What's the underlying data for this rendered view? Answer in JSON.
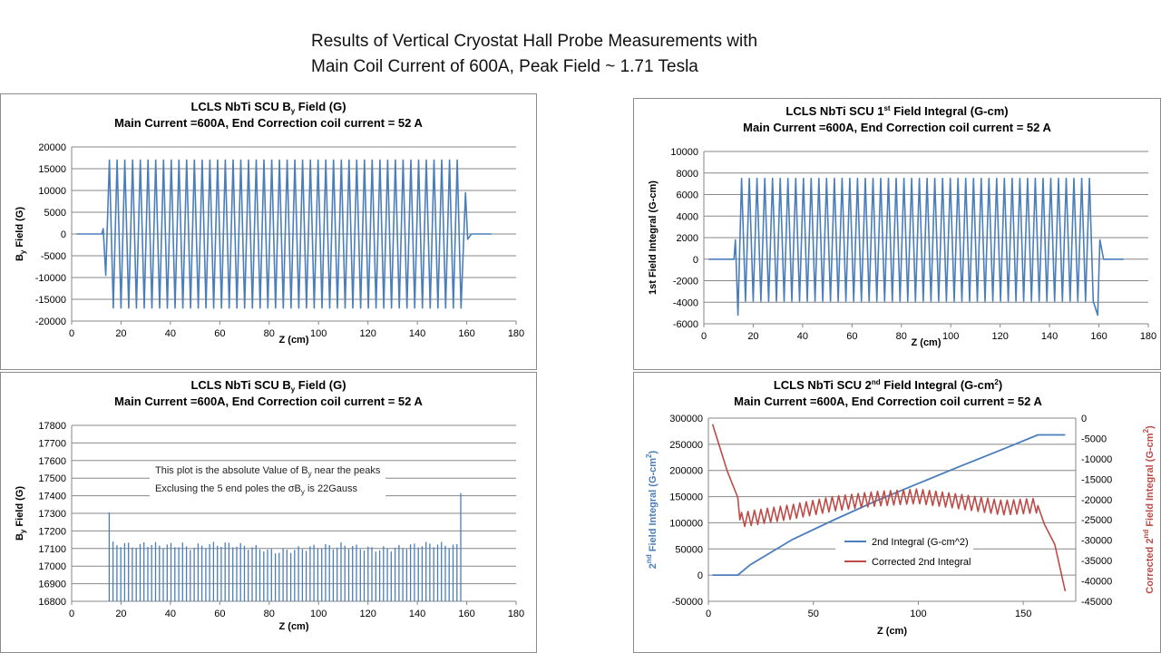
{
  "slide": {
    "title_line1": "Results of Vertical Cryostat Hall Probe Measurements with",
    "title_line2": "Main Coil Current of 600A, Peak Field ~ 1.71 Tesla"
  },
  "colors": {
    "blue": "#4a7ebb",
    "red": "#be4b48",
    "grid": "#878787",
    "text": "#000000"
  },
  "chart_data": [
    {
      "id": "by_field",
      "type": "line",
      "title": [
        "LCLS NbTi SCU B",
        "y",
        " Field (G)"
      ],
      "subtitle": "Main Current =600A, End Correction coil current = 52 A",
      "xlabel": "Z (cm)",
      "ylabel": [
        "B",
        "y",
        " Field (G)"
      ],
      "xlim": [
        0,
        180
      ],
      "ylim": [
        -20000,
        20000
      ],
      "xticks": [
        0,
        20,
        40,
        60,
        80,
        100,
        120,
        140,
        160,
        180
      ],
      "yticks": [
        -20000,
        -15000,
        -10000,
        -5000,
        0,
        5000,
        10000,
        15000,
        20000
      ],
      "grid": true,
      "series": [
        {
          "color": "#4a7ebb",
          "pattern": "oscillating",
          "x_start": 2,
          "x_end": 170,
          "osc_start": 14.5,
          "osc_end": 158.5,
          "periods": 46,
          "pre_peaks": [
            [
              12.8,
              1200
            ],
            [
              13.8,
              -9500
            ]
          ],
          "post_peaks": [
            [
              159.5,
              9500
            ],
            [
              160.4,
              -1200
            ]
          ],
          "amp_pos": 17000,
          "amp_neg": -17000
        }
      ]
    },
    {
      "id": "first_integral",
      "type": "line",
      "title": [
        "LCLS NbTi SCU 1",
        "st",
        " Field Integral (G-cm)"
      ],
      "subtitle": "Main Current =600A, End Correction coil current = 52 A",
      "xlabel": "Z (cm)",
      "ylabel": [
        "1st Field Integral (G-cm)"
      ],
      "xlim": [
        0,
        180
      ],
      "ylim": [
        -6000,
        10000
      ],
      "xticks": [
        0,
        20,
        40,
        60,
        80,
        100,
        120,
        140,
        160,
        180
      ],
      "yticks": [
        -6000,
        -4000,
        -2000,
        0,
        2000,
        4000,
        6000,
        8000,
        10000
      ],
      "grid": true,
      "series": [
        {
          "color": "#4a7ebb",
          "pattern": "oscillating",
          "x_start": 2,
          "x_end": 170,
          "osc_start": 14.5,
          "osc_end": 158.5,
          "periods": 46,
          "pre_peaks": [
            [
              12.8,
              1800
            ],
            [
              13.8,
              -5200
            ]
          ],
          "post_peaks": [
            [
              159.5,
              -5200
            ],
            [
              160.4,
              1800
            ]
          ],
          "amp_pos": 7500,
          "amp_neg": -3900
        }
      ]
    },
    {
      "id": "by_peaks",
      "type": "bar",
      "title": [
        "LCLS NbTi SCU B",
        "y",
        " Field (G)"
      ],
      "subtitle": "Main Current =600A, End Correction coil current = 52 A",
      "xlabel": "Z (cm)",
      "ylabel": [
        "B",
        "y",
        " Field (G)"
      ],
      "xlim": [
        0,
        180
      ],
      "ylim": [
        16800,
        17800
      ],
      "xticks": [
        0,
        20,
        40,
        60,
        80,
        100,
        120,
        140,
        160,
        180
      ],
      "yticks": [
        16800,
        16900,
        17000,
        17100,
        17200,
        17300,
        17400,
        17500,
        17600,
        17700,
        17800
      ],
      "grid": true,
      "annotation": {
        "line1": [
          "This plot is the absolute Value of B",
          "y",
          " near the peaks"
        ],
        "line2": [
          "Exclusing the 5 end poles the σB",
          "y",
          " is 22Gauss"
        ]
      },
      "bars": {
        "x_start": 15.2,
        "x_end": 157.6,
        "count": 92,
        "first": 17305,
        "last": 17415,
        "mean": 17110,
        "spread": 30
      }
    },
    {
      "id": "second_integral",
      "type": "line",
      "title": [
        "LCLS NbTi SCU 2",
        "nd",
        " Field Integral (G-cm",
        "2",
        ")"
      ],
      "subtitle": "Main Current =600A, End Correction coil current = 52 A",
      "xlabel": "Z (cm)",
      "ylabel": [
        "2",
        "nd",
        " Field Integral (G-cm",
        "2",
        ")"
      ],
      "ylabel2": [
        "Corrected 2",
        "nd",
        " Field Integral (G-cm",
        "2",
        ")"
      ],
      "xlim": [
        0,
        175
      ],
      "ylim": [
        -50000,
        300000
      ],
      "ylim2": [
        -45000,
        0
      ],
      "xticks": [
        0,
        50,
        100,
        150
      ],
      "yticks": [
        -50000,
        0,
        50000,
        100000,
        150000,
        200000,
        250000,
        300000
      ],
      "yticks2": [
        -45000,
        -40000,
        -35000,
        -30000,
        -25000,
        -20000,
        -15000,
        -10000,
        -5000,
        0
      ],
      "grid": true,
      "legend": "center-right",
      "series": [
        {
          "name": "2nd Integral (G-cm^2)",
          "color": "#4a7ebb",
          "axis": "left",
          "points": [
            [
              2,
              0
            ],
            [
              14,
              0
            ],
            [
              20,
              20000
            ],
            [
              40,
              68000
            ],
            [
              60,
              106000
            ],
            [
              80,
              142000
            ],
            [
              100,
              175000
            ],
            [
              120,
              208000
            ],
            [
              140,
              240000
            ],
            [
              157,
              268000
            ],
            [
              170,
              268000
            ]
          ]
        },
        {
          "name": "Corrected 2nd Integral",
          "color": "#be4b48",
          "axis": "right",
          "points": [
            [
              2,
              -1500
            ],
            [
              9,
              -13000
            ],
            [
              14,
              -19500
            ],
            [
              15,
              -25000
            ],
            [
              40,
              -23000
            ],
            [
              60,
              -21000
            ],
            [
              80,
              -19800
            ],
            [
              100,
              -19200
            ],
            [
              120,
              -20500
            ],
            [
              140,
              -22000
            ],
            [
              157,
              -21500
            ],
            [
              160,
              -26000
            ],
            [
              165,
              -31000
            ],
            [
              170,
              -42500
            ]
          ],
          "osc_start": 15,
          "osc_end": 157,
          "periods": 46,
          "osc_amp": 1800
        }
      ]
    }
  ]
}
